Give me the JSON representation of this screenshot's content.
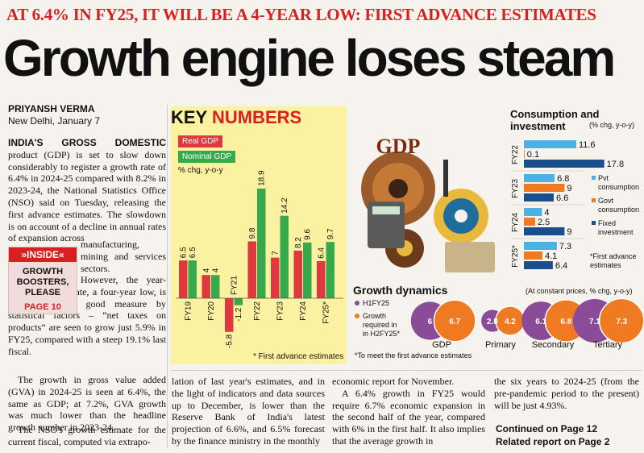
{
  "kicker": "AT 6.4% IN FY25, IT WILL BE A 4-YEAR LOW: FIRST ADVANCE ESTIMATES",
  "headline": "Growth engine loses steam",
  "byline": {
    "author": "PRIYANSH VERMA",
    "dateline": "New Delhi, January 7"
  },
  "article": {
    "lead": "INDIA'S GROSS DOMESTIC",
    "p1": "product (GDP) is set to slow down considerably to register a growth rate of 6.4% in 2024-25 compared with 8.2% in 2023-24, the National Statistics Office (NSO) said on Tuesday, releasing the first advance estimates. The slowdown is on account of a decline in annual rates of expansion across",
    "p1b": "manufacturing, mining and services sectors.",
    "p2": "However, the year-on-year growth rate, a four-year low, is also caused in good measure by statistical factors – “net taxes on products” are seen to grow just 5.9% in FY25, compared with a steep 19.1% last fiscal.",
    "p3": "The growth in gross value added (GVA) in 2024-25 is seen at 6.4%, the same as GDP; at 7.2%, GVA growth was much lower than the headline growth number in 2023-24.",
    "p4": "The NSO's growth estimate for the current fiscal, computed via extrapo-",
    "col2": "lation of last year's estimates, and in the light of indicators and data sources up to December, is lower than the Reserve Bank of India's latest projection of 6.6%, and 6.5% forecast by the finance ministry in the monthly",
    "col3": "economic report for November.",
    "col3b": "A 6.4% growth in FY25 would require 6.7% economic expansion in the second half of the year, compared with 6% in the first half. It also implies that the average growth in",
    "col4": "the six years to 2024-25 (from the pre-pandemic period to the present) will be just 4.93%."
  },
  "inside": {
    "tag": "»INSIDE«",
    "title": "GROWTH BOOSTERS, PLEASE",
    "page": "PAGE 10"
  },
  "continued": {
    "line1": "Continued on Page 12",
    "line2": "Related report on Page 2"
  },
  "graphic": {
    "label": "GDP"
  },
  "chart_data": [
    {
      "type": "bar",
      "title": "KEY NUMBERS",
      "ylabel": "% chg, y-o-y",
      "categories": [
        "FY19",
        "FY20",
        "FY21",
        "FY22",
        "FY23",
        "FY24",
        "FY25*"
      ],
      "series": [
        {
          "name": "Real GDP",
          "color": "#e0383f",
          "values": [
            6.5,
            4,
            -5.8,
            9.8,
            7,
            8.2,
            6.4
          ]
        },
        {
          "name": "Nominal GDP",
          "color": "#35a94b",
          "values": [
            6.5,
            4,
            -1.2,
            18.9,
            14.2,
            9.6,
            9.7
          ]
        }
      ],
      "ylim": [
        -6,
        20
      ],
      "footnote": "* First advance estimates"
    },
    {
      "type": "bar",
      "orientation": "horizontal",
      "title": "Consumption and investment",
      "subtitle": "(% chg, y-o-y)",
      "categories": [
        "FY22",
        "FY23",
        "FY24",
        "FY25*"
      ],
      "series": [
        {
          "name": "Pvt consumption",
          "color": "#4bb2e3",
          "values": [
            11.6,
            6.8,
            4,
            7.3
          ]
        },
        {
          "name": "Govt consumption",
          "color": "#ef7a22",
          "values": [
            0.1,
            9,
            2.5,
            4.1
          ]
        },
        {
          "name": "Fixed investment",
          "color": "#1b4f8c",
          "values": [
            17.8,
            6.6,
            9,
            6.4
          ]
        }
      ],
      "footnote": "*First advance estimates"
    },
    {
      "type": "bubble",
      "title": "Growth dynamics",
      "subtitle": "(At constant prices, % chg, y-o-y)",
      "categories": [
        "GDP",
        "Primary",
        "Secondary",
        "Tertiary"
      ],
      "series": [
        {
          "name": "H1FY25",
          "color": "#8a4b98",
          "values": [
            6,
            2.8,
            6.1,
            7.1
          ]
        },
        {
          "name": "Growth required in H2FY25*",
          "color": "#ef7a22",
          "values": [
            6.7,
            4.2,
            6.8,
            7.3
          ]
        }
      ],
      "footnote": "*To meet the first advance estimates"
    }
  ]
}
